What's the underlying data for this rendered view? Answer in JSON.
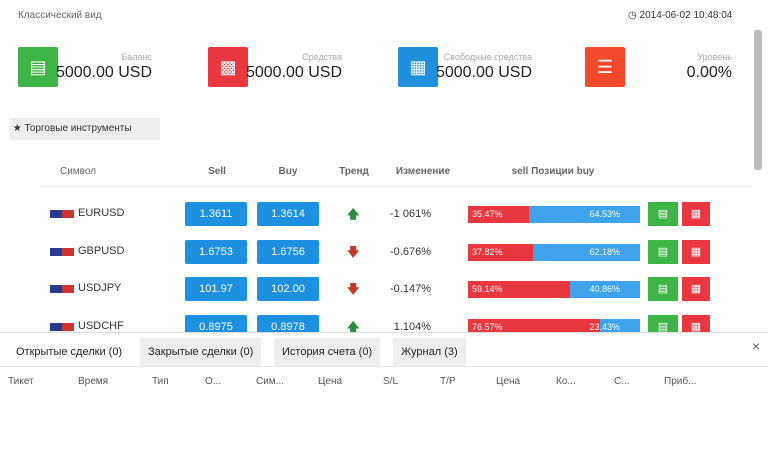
{
  "header": {
    "title": "Классический вид",
    "datetime": "2014-06-02 10:48:04"
  },
  "cards": [
    {
      "label": "Баланс",
      "value": "5000.00 USD",
      "color": "#3fb548"
    },
    {
      "label": "Средства",
      "value": "5000.00 USD",
      "color": "#e8373f"
    },
    {
      "label": "Свободные средства",
      "value": "5000.00 USD",
      "color": "#1f8fde"
    },
    {
      "label": "Уровень",
      "value": "0.00%",
      "color": "#f2492c"
    }
  ],
  "tools_button": "Торговые инструменты",
  "table": {
    "columns": [
      "Символ",
      "Sell",
      "Buy",
      "Тренд",
      "Изменение",
      "sell Позиции buy"
    ],
    "rows": [
      {
        "symbol": "EURUSD",
        "sell": "1.3611",
        "buy": "1.3614",
        "trend": "up",
        "change": "-1 061%",
        "sell_pos": {
          "value": 35.47,
          "label": "35.47%"
        },
        "buy_pos": {
          "value": 64.53,
          "label": "64.53%"
        }
      },
      {
        "symbol": "GBPUSD",
        "sell": "1.6753",
        "buy": "1.6756",
        "trend": "down",
        "change": "-0.676%",
        "sell_pos": {
          "value": 37.82,
          "label": "37.82%"
        },
        "buy_pos": {
          "value": 62.18,
          "label": "62.18%"
        }
      },
      {
        "symbol": "USDJPY",
        "sell": "101.97",
        "buy": "102.00",
        "trend": "down",
        "change": "-0.147%",
        "sell_pos": {
          "value": 59.14,
          "label": "59.14%"
        },
        "buy_pos": {
          "value": 40.86,
          "label": "40.86%"
        }
      },
      {
        "symbol": "USDCHF",
        "sell": "0.8975",
        "buy": "0.8978",
        "trend": "up",
        "change": "1.104%",
        "sell_pos": {
          "value": 76.57,
          "label": "76.57%"
        },
        "buy_pos": {
          "value": 23.43,
          "label": "23.43%"
        }
      }
    ]
  },
  "tabs": [
    "Открытые сделки (0)",
    "Закрытые сделки (0)",
    "История счета (0)",
    "Журнал (3)"
  ],
  "trade_columns": [
    "Тикет",
    "Время",
    "Тип",
    "О...",
    "Сим...",
    "Цена",
    "S/L",
    "T/P",
    "Цена",
    "Ко...",
    "С...",
    "Приб..."
  ]
}
